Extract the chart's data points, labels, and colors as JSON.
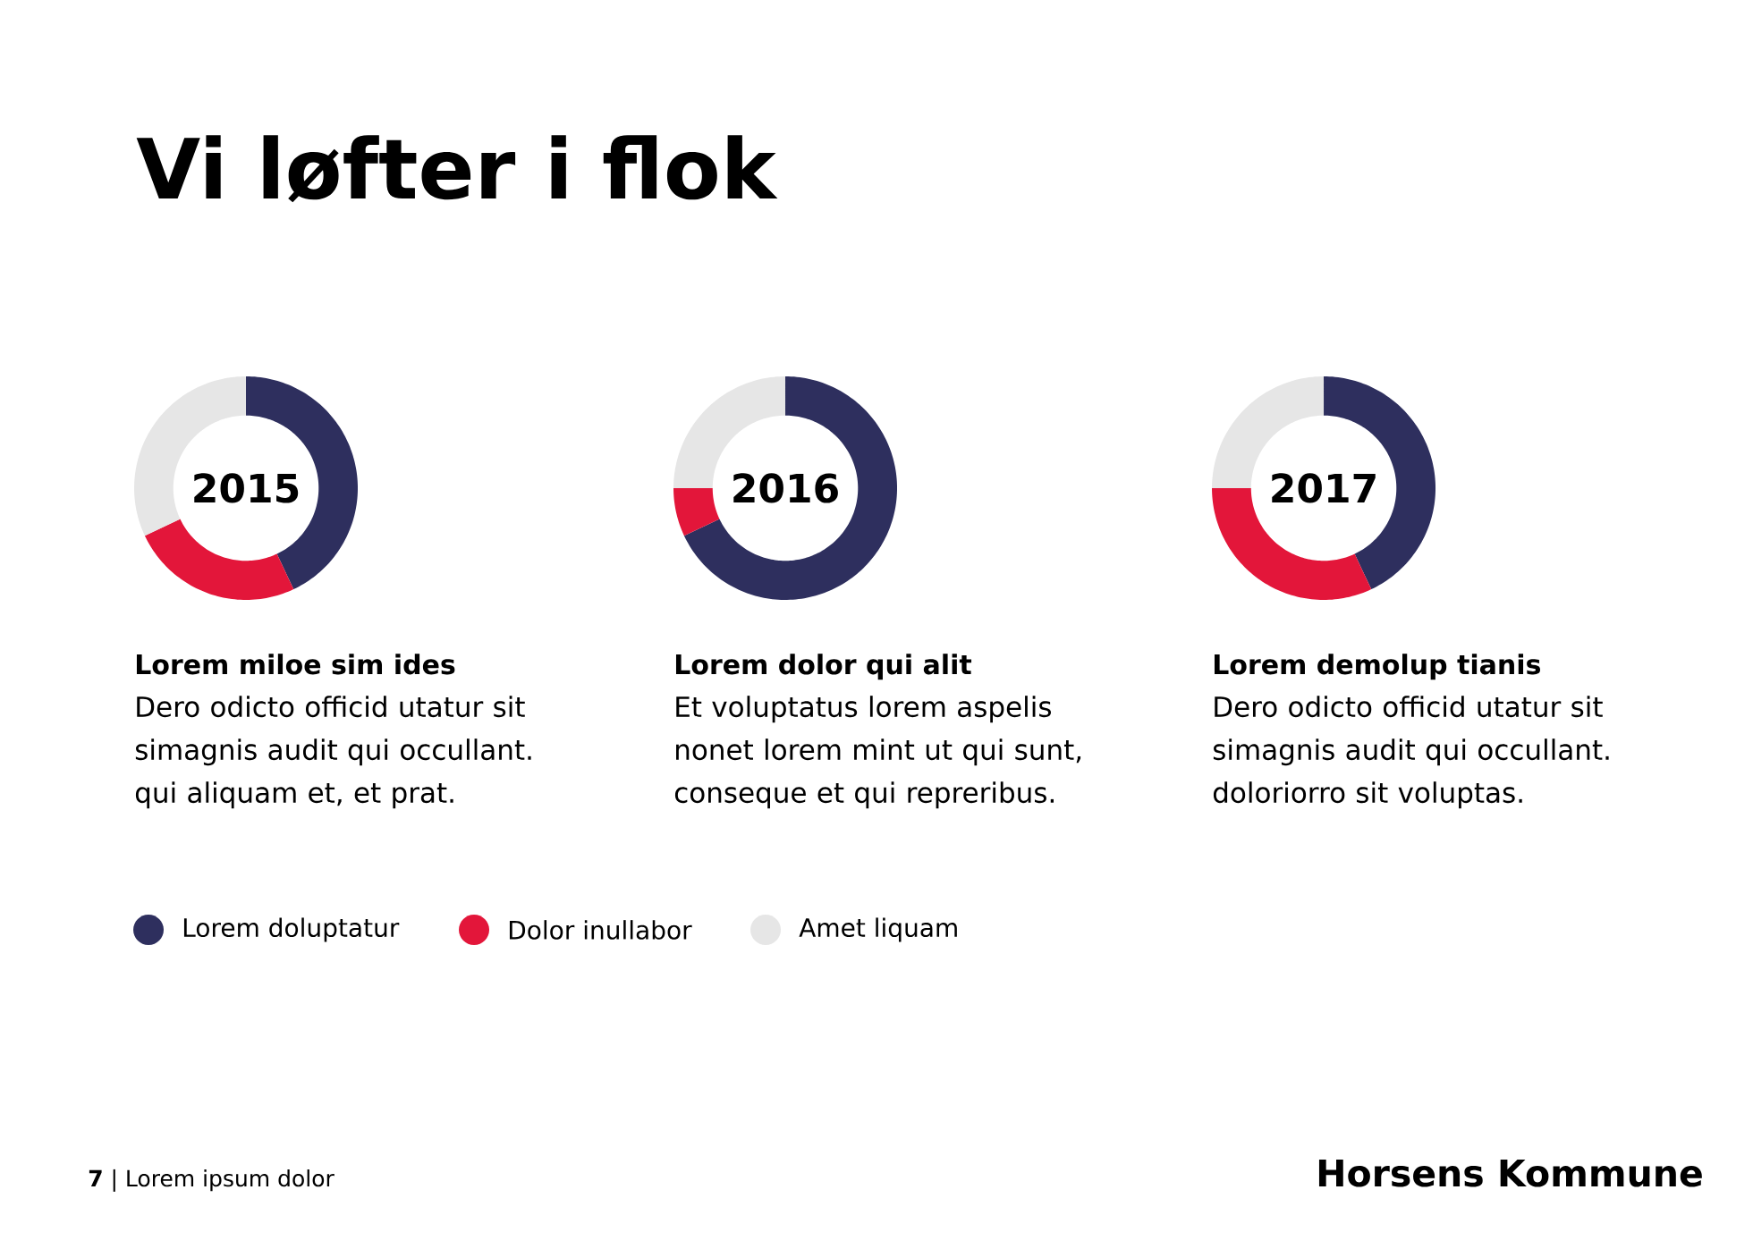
{
  "chart_data": [
    {
      "type": "donut",
      "title": "2015",
      "subtitle": "Lorem miloe sim ides",
      "annotations": [
        "Dero odicto officid utatur sit simagnis audit qui occullant. qui aliquam et, et prat."
      ],
      "categories": [
        "Lorem doluptatur",
        "Dolor inullabor",
        "Amet liquam"
      ],
      "values": [
        43,
        25,
        32
      ],
      "colors": [
        "#2e2f5e",
        "#e3163a",
        "#e6e6e6"
      ],
      "legend": "bottom"
    },
    {
      "type": "donut",
      "title": "2016",
      "subtitle": "Lorem dolor qui alit",
      "annotations": [
        "Et voluptatus lorem aspelis nonet lorem mint ut qui sunt, conseque et qui repreribus."
      ],
      "values": [
        68,
        7,
        25
      ],
      "colors": [
        "#2e2f5e",
        "#e3163a",
        "#e6e6e6"
      ]
    },
    {
      "type": "donut",
      "title": "2017",
      "subtitle": "Lorem demolup tianis",
      "annotations": [
        "Dero odicto officid utatur sit simagnis audit qui occullant. doloriorro sit voluptas."
      ],
      "values": [
        43,
        32,
        25
      ],
      "colors": [
        "#2e2f5e",
        "#e3163a",
        "#e6e6e6"
      ]
    },
    {
      "type": "other",
      "title": "Vi løfter i flok",
      "annotations": [
        "**7** | Lorem ipsum dolor",
        "Horsens Kommune"
      ]
    }
  ]
}
